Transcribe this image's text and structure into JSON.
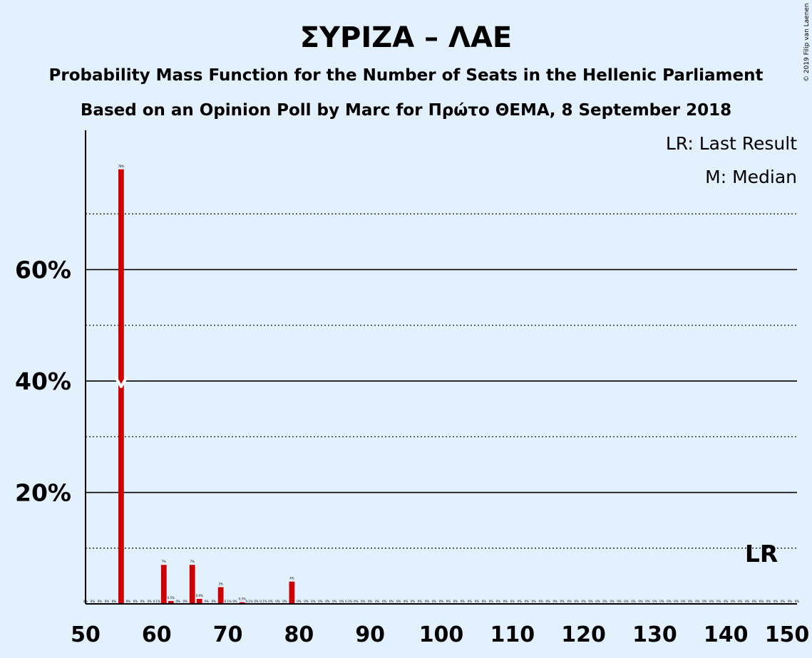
{
  "header": {
    "title": "ΣΥΡΙΖΑ – ΛΑΕ",
    "subtitle1": "Probability Mass Function for the Number of Seats in the Hellenic Parliament",
    "subtitle2": "Based on an Opinion Poll by Marc for Πρώτο ΘΕΜΑ, 8 September 2018"
  },
  "legend": {
    "last_result": "LR: Last Result",
    "median": "M: Median"
  },
  "copyright": "© 2019 Filip van Laenen",
  "colors": {
    "background": "#e3f0fd",
    "bar": "#cc0000",
    "text": "#000000",
    "median_marker": "#ffffff"
  },
  "chart_data": {
    "type": "bar",
    "xlim": [
      50,
      150
    ],
    "ylim": [
      0,
      85
    ],
    "x_ticks": [
      50,
      60,
      70,
      80,
      90,
      100,
      110,
      120,
      130,
      140,
      150
    ],
    "y_ticks_major": [
      20,
      40,
      60
    ],
    "y_ticks_minor": [
      10,
      30,
      50,
      70
    ],
    "y_tick_labels": [
      "20%",
      "40%",
      "60%"
    ],
    "median": 55,
    "median_label": "M",
    "last_result": 145,
    "last_result_label": "LR",
    "x": [
      55,
      61,
      62,
      65,
      66,
      69,
      72,
      79
    ],
    "values": [
      78,
      7,
      0.5,
      7,
      0.9,
      3,
      0.3,
      4
    ],
    "labels": [
      "78%",
      "7%",
      "0.5%",
      "7%",
      "0.9%",
      "3%",
      "0.3%",
      "4%"
    ],
    "zero_label": "0%",
    "small_points": [
      {
        "x": 60,
        "label": "0.1%"
      },
      {
        "x": 70,
        "label": "0.1%"
      },
      {
        "x": 73,
        "label": "0.1%"
      },
      {
        "x": 75,
        "label": "0.1%"
      },
      {
        "x": 87,
        "label": "0.1%"
      }
    ]
  }
}
